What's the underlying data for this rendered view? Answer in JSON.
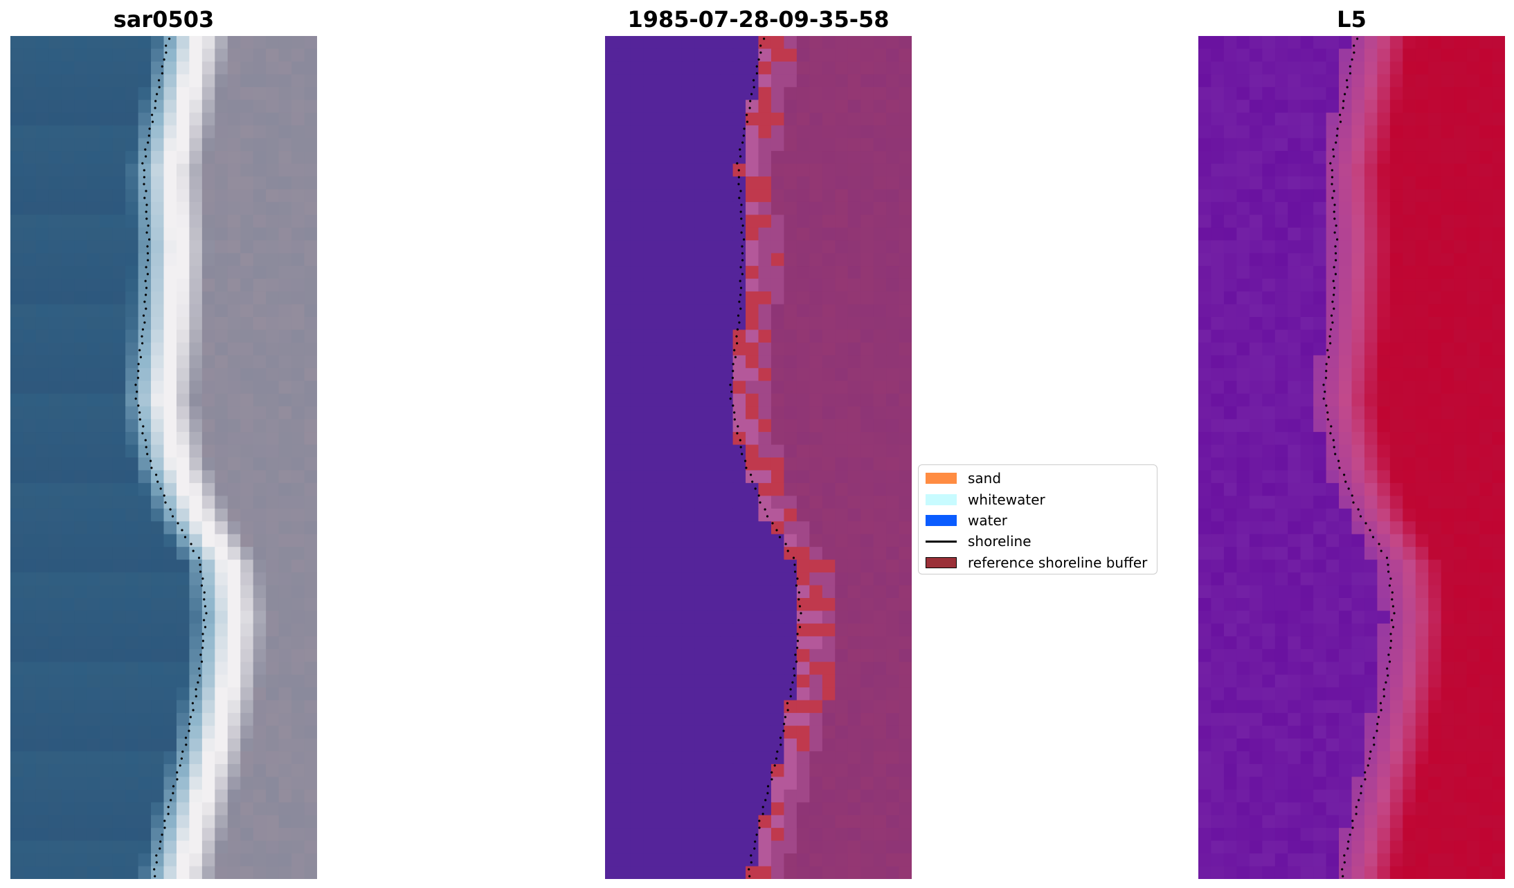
{
  "panels": [
    {
      "title": "sar0503",
      "kind": "rgb"
    },
    {
      "title": "1985-07-28-09-35-58",
      "kind": "classified"
    },
    {
      "title": "L5",
      "kind": "index"
    }
  ],
  "legend": {
    "items": [
      {
        "label": "sand",
        "type": "patch",
        "color": "#ff8c42"
      },
      {
        "label": "whitewater",
        "type": "patch",
        "color": "#c8fbff"
      },
      {
        "label": "water",
        "type": "patch",
        "color": "#0a5cff"
      },
      {
        "label": "shoreline",
        "type": "line",
        "color": "#000000"
      },
      {
        "label": "reference shoreline buffer",
        "type": "patch",
        "color": "#9b3038"
      }
    ]
  },
  "colors": {
    "water_rgb": "#2f5e82",
    "land_rgb": "#8a8a9c",
    "foam": "#f2f0f2",
    "class_water": "#55249a",
    "class_land": "#8e3576",
    "buffer": "#c0394d",
    "index_low": "#6a12a0",
    "index_high": "#c00532"
  }
}
